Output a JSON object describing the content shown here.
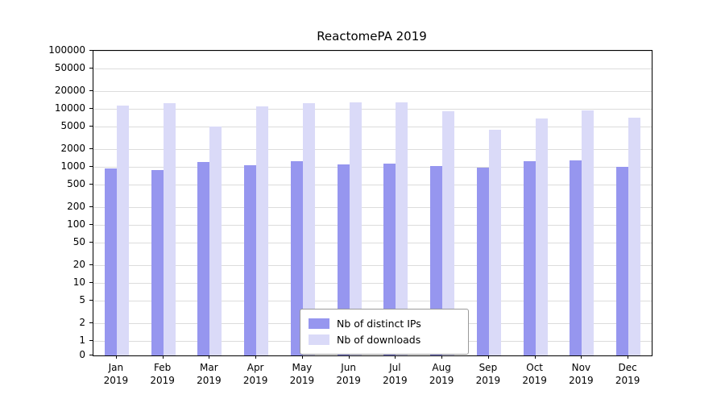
{
  "chart_data": {
    "type": "bar",
    "title": "ReactomePA 2019",
    "categories": [
      "Jan",
      "Feb",
      "Mar",
      "Apr",
      "May",
      "Jun",
      "Jul",
      "Aug",
      "Sep",
      "Oct",
      "Nov",
      "Dec"
    ],
    "category_year": "2019",
    "series": [
      {
        "name": "Nb of distinct IPs",
        "color": "#9696ef",
        "values": [
          950,
          880,
          1200,
          1060,
          1250,
          1100,
          1150,
          1020,
          980,
          1250,
          1300,
          1000
        ]
      },
      {
        "name": "Nb of downloads",
        "color": "#dadaf8",
        "values": [
          11500,
          12500,
          4900,
          11000,
          12500,
          13000,
          13000,
          9000,
          4300,
          6800,
          9300,
          7000
        ]
      }
    ],
    "axis": {
      "y_scale": "symlog",
      "ylim": [
        0,
        100000
      ],
      "y_ticks": [
        0,
        1,
        2,
        5,
        10,
        20,
        50,
        100,
        200,
        500,
        1000,
        2000,
        5000,
        10000,
        20000,
        50000,
        100000
      ],
      "grid": "horizontal"
    },
    "legend_position": "bottom-center-inside"
  }
}
